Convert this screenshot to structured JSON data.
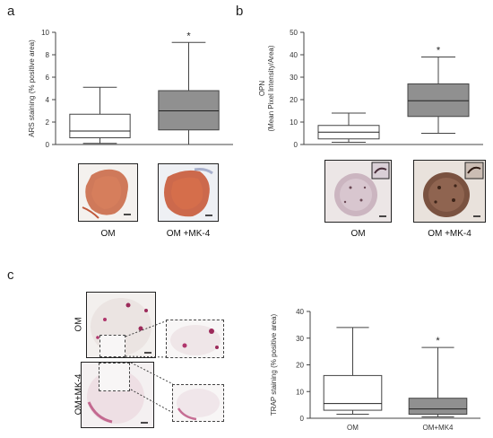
{
  "panels": {
    "a": {
      "letter": "a",
      "labels": [
        "OM",
        "OM +MK-4"
      ]
    },
    "b": {
      "letter": "b",
      "labels": [
        "OM",
        "OM +MK-4"
      ]
    },
    "c": {
      "letter": "c",
      "side_labels": [
        "OM",
        "OM+MK-4"
      ]
    }
  },
  "colors": {
    "box_fill_treated": "#909090",
    "box_fill_control": "#ffffff",
    "stroke": "#444444"
  },
  "chart_data": [
    {
      "id": "chart-a",
      "type": "box",
      "categories": [
        "OM",
        "OM +MK-4"
      ],
      "ylabel": "ARS staining (% positive area)",
      "ylim": [
        0,
        10
      ],
      "yticks": [
        0,
        2,
        4,
        6,
        8,
        10
      ],
      "series": [
        {
          "category": "OM",
          "min": 0.1,
          "q1": 0.6,
          "median": 1.2,
          "q3": 2.7,
          "max": 5.1
        },
        {
          "category": "OM +MK-4",
          "min": 0.0,
          "q1": 1.3,
          "median": 3.0,
          "q3": 4.8,
          "max": 9.1
        }
      ],
      "significance": [
        {
          "category": "OM +MK-4",
          "symbol": "*"
        }
      ],
      "xticklabels_shown": false
    },
    {
      "id": "chart-b",
      "type": "box",
      "categories": [
        "OM",
        "OM +MK-4"
      ],
      "ylabel": "OPN (Mean Pixel Intensity/Area)",
      "ylabel_lines": [
        "OPN",
        "(Mean Pixel Intensity/Area)"
      ],
      "ylim": [
        0,
        50
      ],
      "yticks": [
        0,
        10,
        20,
        30,
        40,
        50
      ],
      "series": [
        {
          "category": "OM",
          "min": 1.0,
          "q1": 2.5,
          "median": 5.5,
          "q3": 8.5,
          "max": 14.0
        },
        {
          "category": "OM +MK-4",
          "min": 5.0,
          "q1": 12.5,
          "median": 19.5,
          "q3": 27.0,
          "max": 39.0
        }
      ],
      "significance": [
        {
          "category": "OM +MK-4",
          "symbol": "*"
        }
      ],
      "xticklabels_shown": false
    },
    {
      "id": "chart-c",
      "type": "box",
      "categories": [
        "OM",
        "OM+MK4"
      ],
      "ylabel": "TRAP staining (% positive area)",
      "ylim": [
        0,
        40
      ],
      "yticks": [
        0,
        10,
        20,
        30,
        40
      ],
      "series": [
        {
          "category": "OM",
          "min": 1.5,
          "q1": 3.0,
          "median": 5.5,
          "q3": 16.0,
          "max": 34.0
        },
        {
          "category": "OM+MK4",
          "min": 0.5,
          "q1": 1.5,
          "median": 3.5,
          "q3": 7.5,
          "max": 26.5
        }
      ],
      "significance": [
        {
          "category": "OM+MK4",
          "symbol": "*"
        }
      ],
      "xticklabels_shown": true
    }
  ]
}
